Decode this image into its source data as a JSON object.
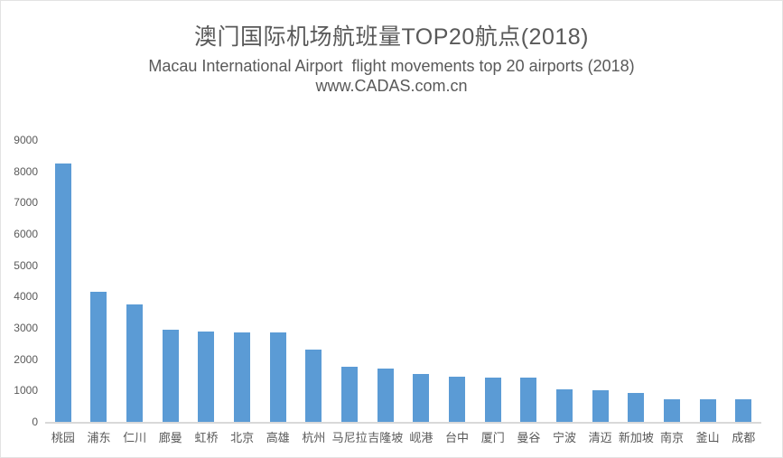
{
  "header": {
    "title_zh": "澳门国际机场航班量TOP20航点(2018)",
    "subtitle_en": "Macau International Airport  flight movements top 20 airports (2018)",
    "source": "www.CADAS.com.cn"
  },
  "chart_data": {
    "type": "bar",
    "title": "澳门国际机场航班量TOP20航点(2018)",
    "subtitle": "Macau International Airport  flight movements top 20 airports (2018)",
    "source": "www.CADAS.com.cn",
    "categories": [
      "桃园",
      "浦东",
      "仁川",
      "廊曼",
      "虹桥",
      "北京",
      "高雄",
      "杭州",
      "马尼拉",
      "吉隆坡",
      "岘港",
      "台中",
      "厦门",
      "曼谷",
      "宁波",
      "清迈",
      "新加坡",
      "南京",
      "釜山",
      "成都"
    ],
    "values": [
      8250,
      4160,
      3760,
      2950,
      2890,
      2870,
      2850,
      2310,
      1760,
      1690,
      1540,
      1440,
      1410,
      1400,
      1030,
      1020,
      930,
      720,
      730,
      720
    ],
    "xlabel": "",
    "ylabel": "",
    "ylim": [
      0,
      9000
    ],
    "ytick_step": 1000,
    "yticks": [
      0,
      1000,
      2000,
      3000,
      4000,
      5000,
      6000,
      7000,
      8000,
      9000
    ],
    "grid": false,
    "legend": "none",
    "bar_color": "#5B9BD5",
    "axis_line_color": "#D9D9D9",
    "text_color": "#595959",
    "background": "#FFFFFF"
  }
}
